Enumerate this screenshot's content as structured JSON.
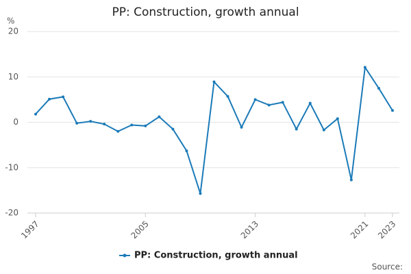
{
  "chart_data": {
    "type": "line",
    "title": "PP: Construction, growth annual",
    "y_label": "%",
    "x": [
      1997,
      1998,
      1999,
      2000,
      2001,
      2002,
      2003,
      2004,
      2005,
      2006,
      2007,
      2008,
      2009,
      2010,
      2011,
      2012,
      2013,
      2014,
      2015,
      2016,
      2017,
      2018,
      2019,
      2020,
      2021,
      2022,
      2023
    ],
    "series": [
      {
        "name": "PP: Construction, growth annual",
        "color": "#1a7ab8",
        "values": [
          1.8,
          5.1,
          5.6,
          -0.2,
          0.2,
          -0.4,
          -2.0,
          -0.6,
          -0.8,
          1.2,
          -1.5,
          -6.3,
          -15.7,
          8.9,
          5.7,
          -1.1,
          5.0,
          3.8,
          4.4,
          -1.5,
          4.2,
          -1.7,
          0.8,
          -12.7,
          12.1,
          7.5,
          2.6
        ]
      }
    ],
    "xlim": [
      1996.4,
      2023.5
    ],
    "xticks": [
      1997,
      2005,
      2013,
      2021,
      2023
    ],
    "ylim": [
      -20,
      20
    ],
    "yticks": [
      -20,
      -10,
      0,
      10,
      20
    ],
    "grid": true,
    "legend": "bottom",
    "source": "Source:"
  }
}
